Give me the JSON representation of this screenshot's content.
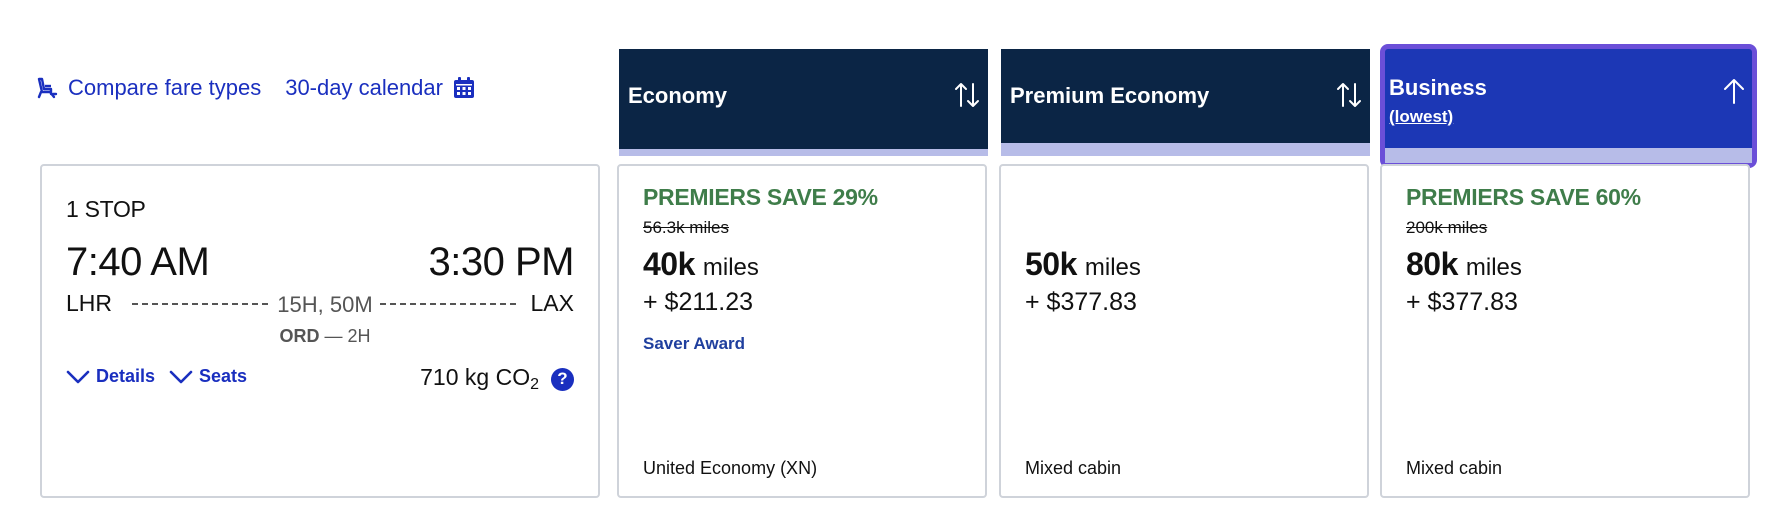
{
  "toolbar": {
    "compare_label": "Compare fare types",
    "calendar_label": "30-day calendar",
    "compare_icon": "seat-icon",
    "calendar_icon": "calendar-icon"
  },
  "flight": {
    "stops": "1 STOP",
    "departure_time": "7:40 AM",
    "arrival_time": "3:30 PM",
    "origin": "LHR",
    "destination": "LAX",
    "duration": "15H, 50M",
    "layover_airport": "ORD",
    "layover_duration": "— 2H",
    "details_label": "Details",
    "seats_label": "Seats",
    "co2_value": "710 kg CO",
    "co2_sub": "2",
    "help_symbol": "?"
  },
  "columns": [
    {
      "title": "Economy",
      "subtitle": "",
      "sort_icon": "sort-both-icon"
    },
    {
      "title": "Premium Economy",
      "subtitle": "",
      "sort_icon": "sort-both-icon"
    },
    {
      "title": "Business",
      "subtitle": "(lowest)",
      "sort_icon": "sort-up-icon",
      "active": true
    }
  ],
  "fares": [
    {
      "promo": "PREMIERS SAVE 29%",
      "old_price": "56.3k miles",
      "miles": "40k",
      "miles_unit": "miles",
      "cash": "+ $211.23",
      "award": "Saver Award",
      "cabin": "United Economy (XN)"
    },
    {
      "promo": "",
      "old_price": "",
      "miles": "50k",
      "miles_unit": "miles",
      "cash": "+ $377.83",
      "award": "",
      "cabin": "Mixed cabin"
    },
    {
      "promo": "PREMIERS SAVE 60%",
      "old_price": "200k miles",
      "miles": "80k",
      "miles_unit": "miles",
      "cash": "+ $377.83",
      "award": "",
      "cabin": "Mixed cabin"
    }
  ],
  "colors": {
    "link": "#1a2fbf",
    "header_bg": "#0b2545",
    "active_header_bg": "#1c37b5",
    "active_border": "#6b4fd8",
    "promo_green": "#3f7d4a"
  }
}
